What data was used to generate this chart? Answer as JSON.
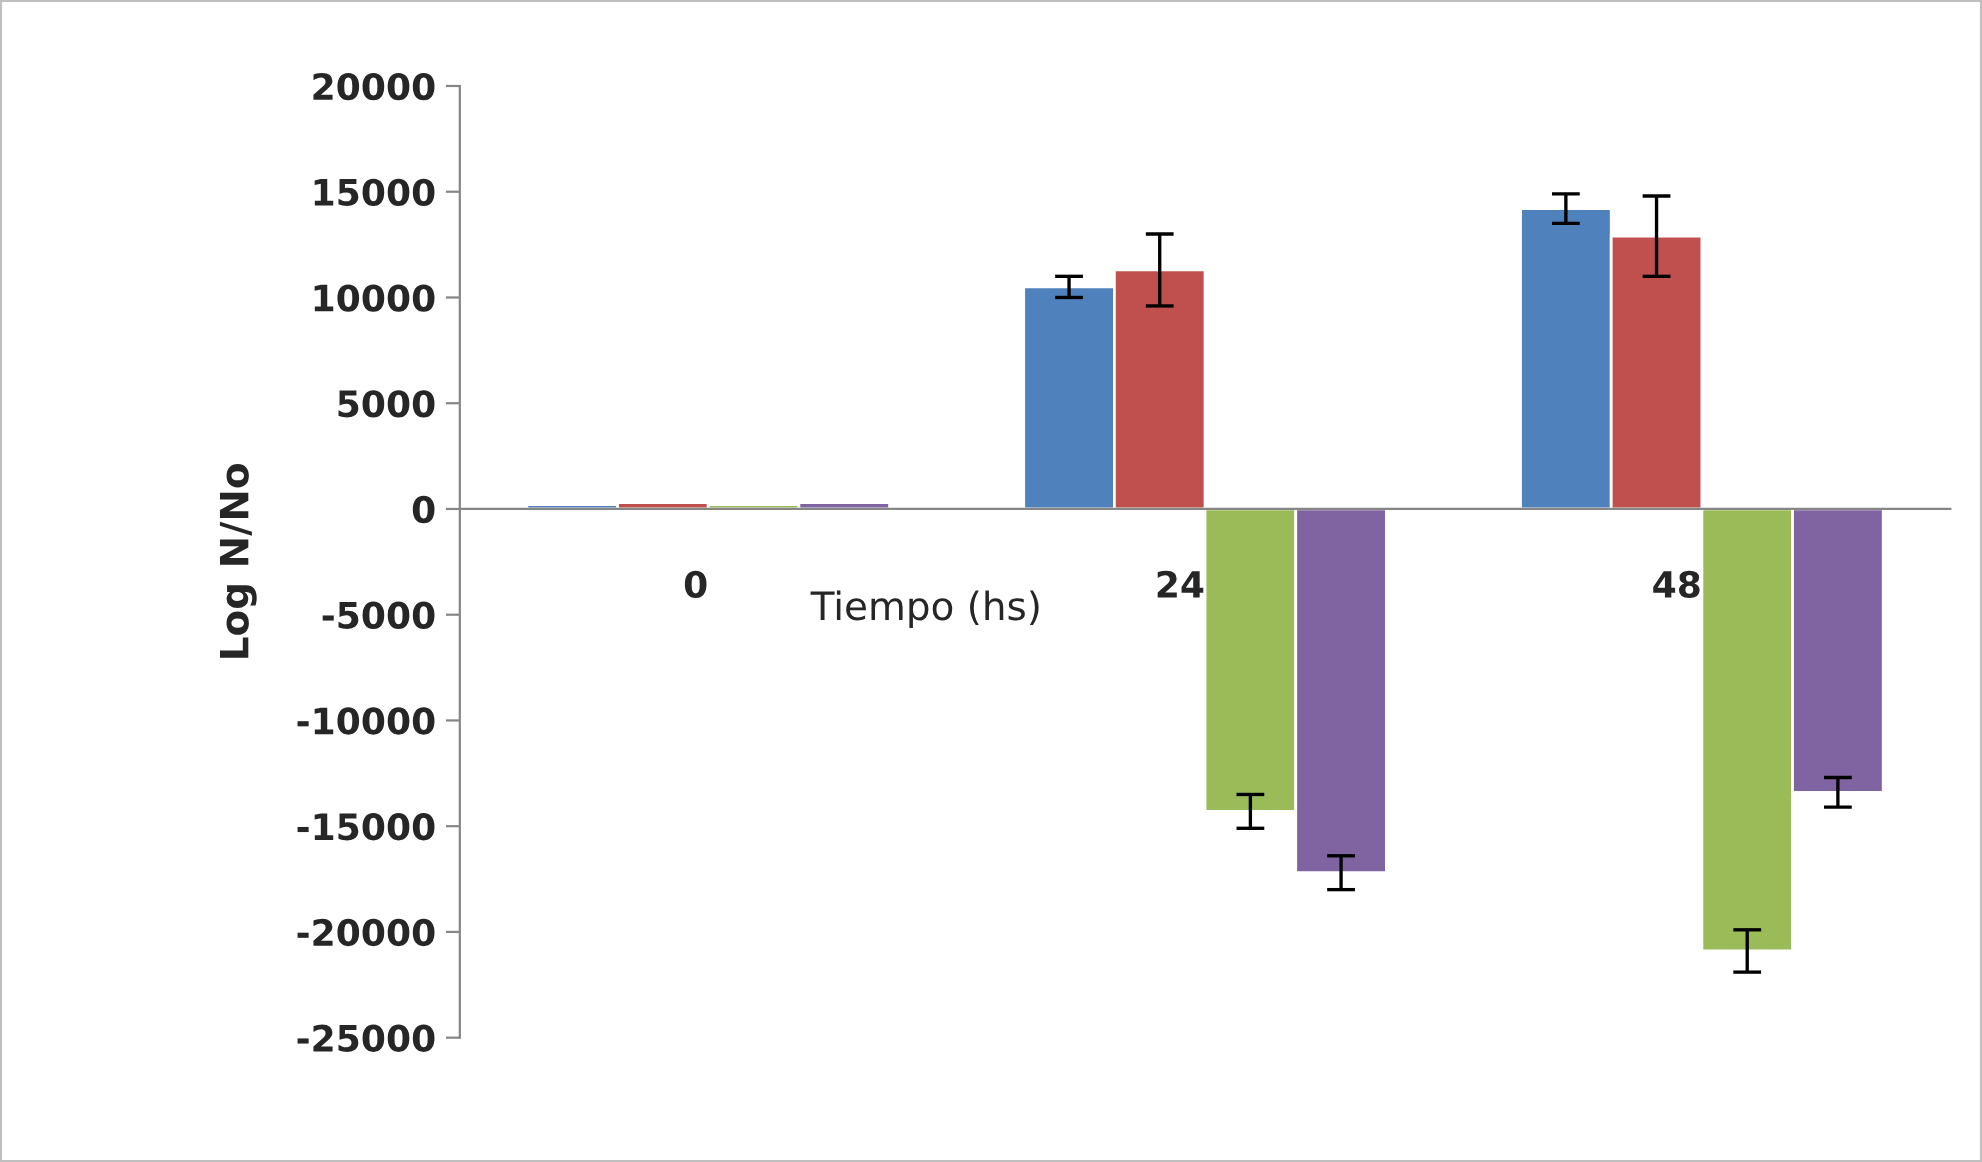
{
  "chart_data": {
    "type": "bar",
    "xlabel": "Tiempo (hs)",
    "ylabel": "Log N/No",
    "categories": [
      "0",
      "24",
      "48"
    ],
    "series": [
      {
        "color": "#4f81bd",
        "values": [
          200,
          10500,
          14200
        ],
        "errors": [
          null,
          500,
          700
        ]
      },
      {
        "color": "#c0504d",
        "values": [
          300,
          11300,
          12900
        ],
        "errors": [
          null,
          1700,
          1900
        ]
      },
      {
        "color": "#9bbb59",
        "values": [
          200,
          -14300,
          -20900
        ],
        "errors": [
          null,
          800,
          1000
        ]
      },
      {
        "color": "#8064a2",
        "values": [
          300,
          -17200,
          -13400
        ],
        "errors": [
          null,
          800,
          700
        ]
      }
    ],
    "ylim": [
      -25000,
      20000
    ],
    "yticks": [
      -25000,
      -20000,
      -15000,
      -10000,
      -5000,
      0,
      5000,
      10000,
      15000,
      20000
    ],
    "grid": false,
    "legend": false
  }
}
